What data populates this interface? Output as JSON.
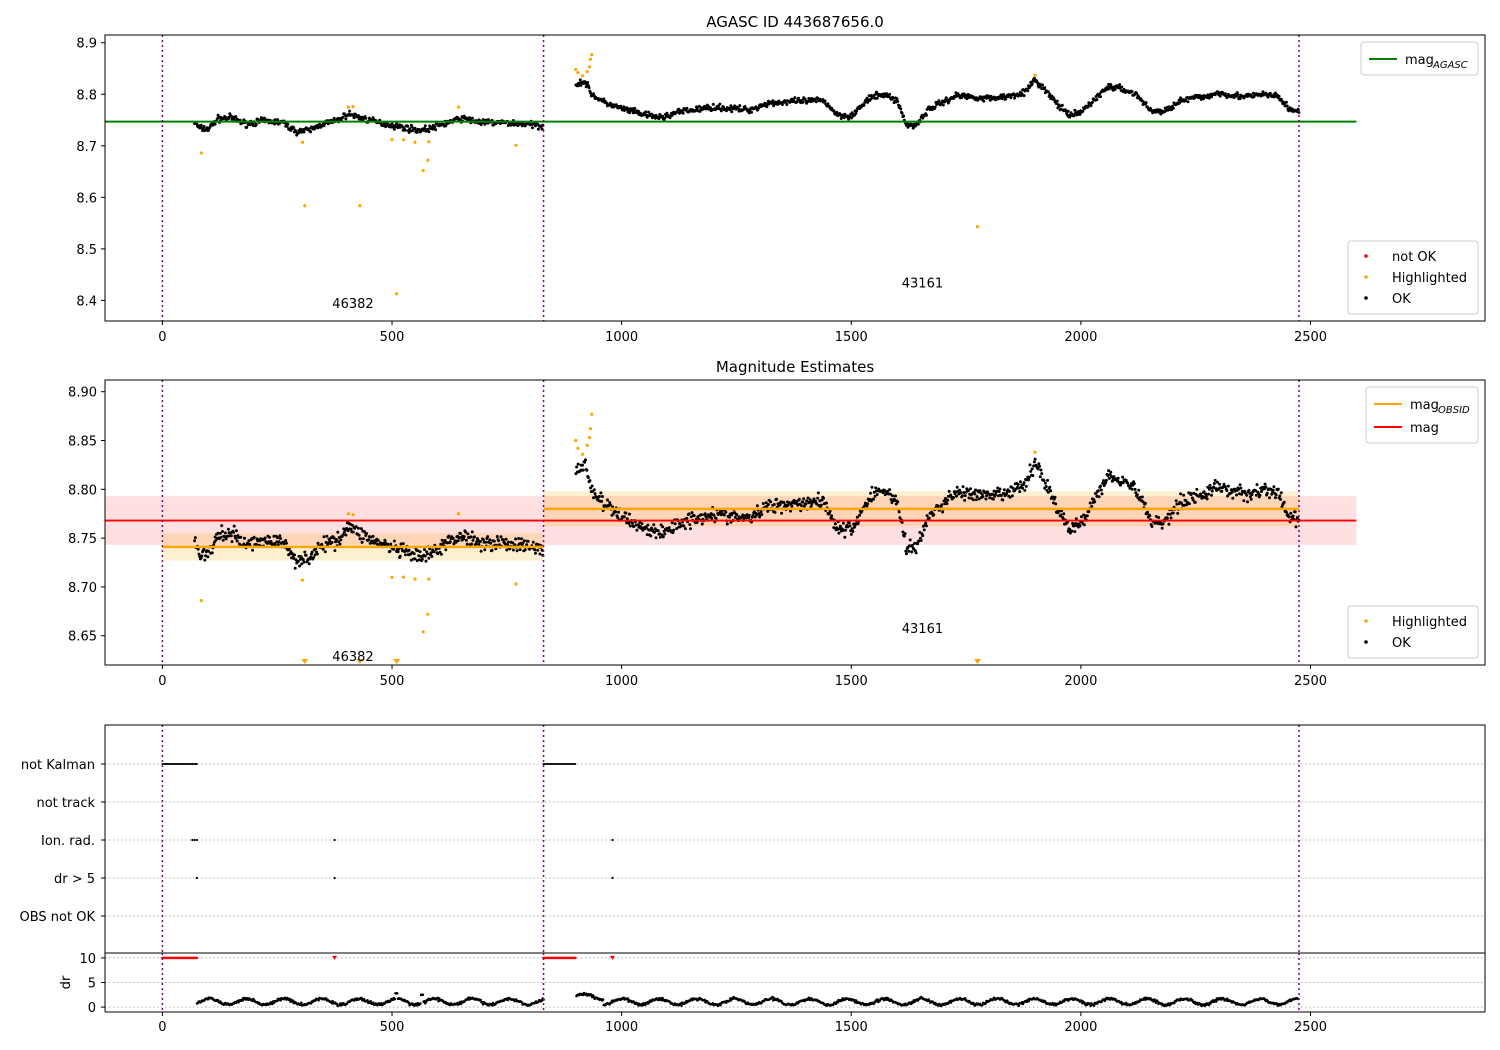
{
  "chart_data": [
    {
      "id": "p1",
      "type": "scatter",
      "title": "AGASC ID 443687656.0",
      "xlim": [
        -125,
        2880
      ],
      "ylim": [
        8.36,
        8.915
      ],
      "xticks": [
        0,
        500,
        1000,
        1500,
        2000,
        2500
      ],
      "yticks": [
        8.4,
        8.5,
        8.6,
        8.7,
        8.8,
        8.9
      ],
      "ytick_labels": [
        "8.4",
        "8.5",
        "8.6",
        "8.7",
        "8.8",
        "8.9"
      ],
      "vlines": [
        0,
        830,
        2475
      ],
      "hline": {
        "y": 8.747,
        "x0": -125,
        "x1": 2600,
        "color": "#008000"
      },
      "annotations": [
        {
          "text": "46382",
          "x": 415,
          "y": 8.385
        },
        {
          "text": "43161",
          "x": 1655,
          "y": 8.425
        }
      ],
      "legend_top": [
        {
          "label": "mag",
          "sub": "AGASC",
          "color": "#008000",
          "kind": "line"
        }
      ],
      "legend_bottom": [
        {
          "label": "not OK",
          "color": "#ff0000",
          "kind": "dot"
        },
        {
          "label": "Highlighted",
          "color": "#ffa500",
          "kind": "dot"
        },
        {
          "label": "OK",
          "color": "#000000",
          "kind": "dot"
        }
      ],
      "highlighted": [
        [
          85,
          8.686
        ],
        [
          305,
          8.707
        ],
        [
          310,
          8.584
        ],
        [
          405,
          8.775
        ],
        [
          415,
          8.776
        ],
        [
          430,
          8.584
        ],
        [
          500,
          8.712
        ],
        [
          510,
          8.413
        ],
        [
          525,
          8.712
        ],
        [
          550,
          8.707
        ],
        [
          568,
          8.652
        ],
        [
          578,
          8.672
        ],
        [
          580,
          8.708
        ],
        [
          645,
          8.775
        ],
        [
          770,
          8.701
        ],
        [
          900,
          8.848
        ],
        [
          905,
          8.842
        ],
        [
          915,
          8.836
        ],
        [
          925,
          8.844
        ],
        [
          930,
          8.853
        ],
        [
          932,
          8.868
        ],
        [
          935,
          8.877
        ],
        [
          1775,
          8.543
        ],
        [
          1900,
          8.837
        ]
      ],
      "segments": [
        [
          70,
          8.745
        ],
        [
          80,
          8.735
        ],
        [
          100,
          8.732
        ],
        [
          120,
          8.752
        ],
        [
          150,
          8.755
        ],
        [
          180,
          8.743
        ],
        [
          220,
          8.748
        ],
        [
          260,
          8.746
        ],
        [
          290,
          8.728
        ],
        [
          320,
          8.73
        ],
        [
          350,
          8.743
        ],
        [
          380,
          8.748
        ],
        [
          405,
          8.762
        ],
        [
          430,
          8.755
        ],
        [
          470,
          8.745
        ],
        [
          510,
          8.738
        ],
        [
          560,
          8.73
        ],
        [
          590,
          8.735
        ],
        [
          620,
          8.745
        ],
        [
          650,
          8.753
        ],
        [
          700,
          8.745
        ],
        [
          740,
          8.745
        ],
        [
          790,
          8.742
        ],
        [
          830,
          8.738
        ],
        null,
        [
          900,
          8.82
        ],
        [
          920,
          8.825
        ],
        [
          935,
          8.8
        ],
        [
          960,
          8.785
        ],
        [
          990,
          8.775
        ],
        [
          1030,
          8.765
        ],
        [
          1060,
          8.758
        ],
        [
          1090,
          8.755
        ],
        [
          1120,
          8.765
        ],
        [
          1160,
          8.77
        ],
        [
          1200,
          8.775
        ],
        [
          1240,
          8.772
        ],
        [
          1280,
          8.77
        ],
        [
          1320,
          8.783
        ],
        [
          1360,
          8.785
        ],
        [
          1400,
          8.787
        ],
        [
          1440,
          8.788
        ],
        [
          1470,
          8.76
        ],
        [
          1500,
          8.758
        ],
        [
          1540,
          8.792
        ],
        [
          1570,
          8.8
        ],
        [
          1600,
          8.788
        ],
        [
          1620,
          8.74
        ],
        [
          1640,
          8.74
        ],
        [
          1670,
          8.772
        ],
        [
          1700,
          8.785
        ],
        [
          1730,
          8.798
        ],
        [
          1760,
          8.795
        ],
        [
          1800,
          8.792
        ],
        [
          1840,
          8.796
        ],
        [
          1880,
          8.805
        ],
        [
          1900,
          8.828
        ],
        [
          1920,
          8.81
        ],
        [
          1950,
          8.78
        ],
        [
          1975,
          8.758
        ],
        [
          2000,
          8.765
        ],
        [
          2030,
          8.79
        ],
        [
          2060,
          8.815
        ],
        [
          2090,
          8.81
        ],
        [
          2120,
          8.8
        ],
        [
          2150,
          8.77
        ],
        [
          2180,
          8.765
        ],
        [
          2210,
          8.785
        ],
        [
          2240,
          8.792
        ],
        [
          2270,
          8.795
        ],
        [
          2300,
          8.803
        ],
        [
          2330,
          8.798
        ],
        [
          2360,
          8.795
        ],
        [
          2400,
          8.8
        ],
        [
          2430,
          8.795
        ],
        [
          2455,
          8.77
        ],
        [
          2475,
          8.768
        ]
      ],
      "noise": 0.009
    },
    {
      "id": "p2",
      "type": "scatter",
      "title": "Magnitude Estimates",
      "xlim": [
        -125,
        2880
      ],
      "ylim": [
        8.62,
        8.912
      ],
      "xticks": [
        0,
        500,
        1000,
        1500,
        2000,
        2500
      ],
      "yticks": [
        8.65,
        8.7,
        8.75,
        8.8,
        8.85,
        8.9
      ],
      "ytick_labels": [
        "8.65",
        "8.70",
        "8.75",
        "8.80",
        "8.85",
        "8.90"
      ],
      "vlines": [
        0,
        830,
        2475
      ],
      "mag_line": {
        "y": 8.768,
        "band": [
          8.743,
          8.793
        ],
        "x0": -125,
        "x1": 2600,
        "color": "#ff0000"
      },
      "obsid_steps": [
        {
          "x0": 0,
          "x1": 830,
          "y": 8.741,
          "band": [
            8.727,
            8.755
          ]
        },
        {
          "x0": 830,
          "x1": 2475,
          "y": 8.78,
          "band": [
            8.762,
            8.798
          ]
        }
      ],
      "annotations": [
        {
          "text": "46382",
          "x": 415,
          "y": 8.624
        },
        {
          "text": "43161",
          "x": 1655,
          "y": 8.653
        }
      ],
      "legend_top": [
        {
          "label": "mag",
          "sub": "OBSID",
          "color": "#ffa500",
          "kind": "line"
        },
        {
          "label": "mag",
          "sub": "",
          "color": "#ff0000",
          "kind": "line"
        }
      ],
      "legend_bottom": [
        {
          "label": "Highlighted",
          "color": "#ffa500",
          "kind": "dot"
        },
        {
          "label": "OK",
          "color": "#000000",
          "kind": "dot"
        }
      ],
      "clipped_markers_x": [
        310,
        430,
        510,
        1775
      ],
      "highlighted": [
        [
          85,
          8.686
        ],
        [
          305,
          8.707
        ],
        [
          405,
          8.775
        ],
        [
          415,
          8.774
        ],
        [
          500,
          8.71
        ],
        [
          525,
          8.71
        ],
        [
          550,
          8.708
        ],
        [
          568,
          8.654
        ],
        [
          578,
          8.672
        ],
        [
          580,
          8.708
        ],
        [
          645,
          8.775
        ],
        [
          770,
          8.703
        ],
        [
          900,
          8.85
        ],
        [
          905,
          8.842
        ],
        [
          915,
          8.836
        ],
        [
          925,
          8.845
        ],
        [
          930,
          8.853
        ],
        [
          932,
          8.862
        ],
        [
          935,
          8.877
        ],
        [
          1900,
          8.838
        ]
      ],
      "noise": 0.011
    },
    {
      "id": "p3",
      "type": "scatter",
      "xlim": [
        -125,
        2880
      ],
      "xticks": [
        0,
        500,
        1000,
        1500,
        2000,
        2500
      ],
      "vlines": [
        0,
        830,
        2475
      ],
      "flag_rows": [
        "not Kalman",
        "not track",
        "Ion. rad.",
        "dr > 5",
        "OBS not OK"
      ],
      "flag_runs": [
        {
          "row": "not Kalman",
          "ranges": [
            [
              0,
              75
            ],
            [
              830,
              900
            ]
          ]
        },
        {
          "row": "Ion. rad.",
          "points": [
            65,
            70,
            75,
            375,
            980
          ]
        },
        {
          "row": "dr > 5",
          "points": [
            75,
            375,
            980
          ]
        }
      ]
    },
    {
      "id": "p4",
      "type": "scatter",
      "ylabel": "dr",
      "xlim": [
        -125,
        2880
      ],
      "ylim": [
        -1,
        11
      ],
      "xticks": [
        0,
        500,
        1000,
        1500,
        2000,
        2500
      ],
      "xtick_labels": [
        "0",
        "500",
        "1000",
        "1500",
        "2000",
        "2500"
      ],
      "yticks": [
        0,
        5,
        10
      ],
      "ytick_labels": [
        "0",
        "5",
        "10"
      ],
      "vlines": [
        0,
        830,
        2475
      ],
      "red_runs": [
        [
          0,
          75
        ],
        [
          830,
          900
        ]
      ],
      "red_points": [
        375,
        980
      ],
      "gaps": [
        [
          0,
          75
        ],
        [
          830,
          900
        ]
      ]
    }
  ]
}
